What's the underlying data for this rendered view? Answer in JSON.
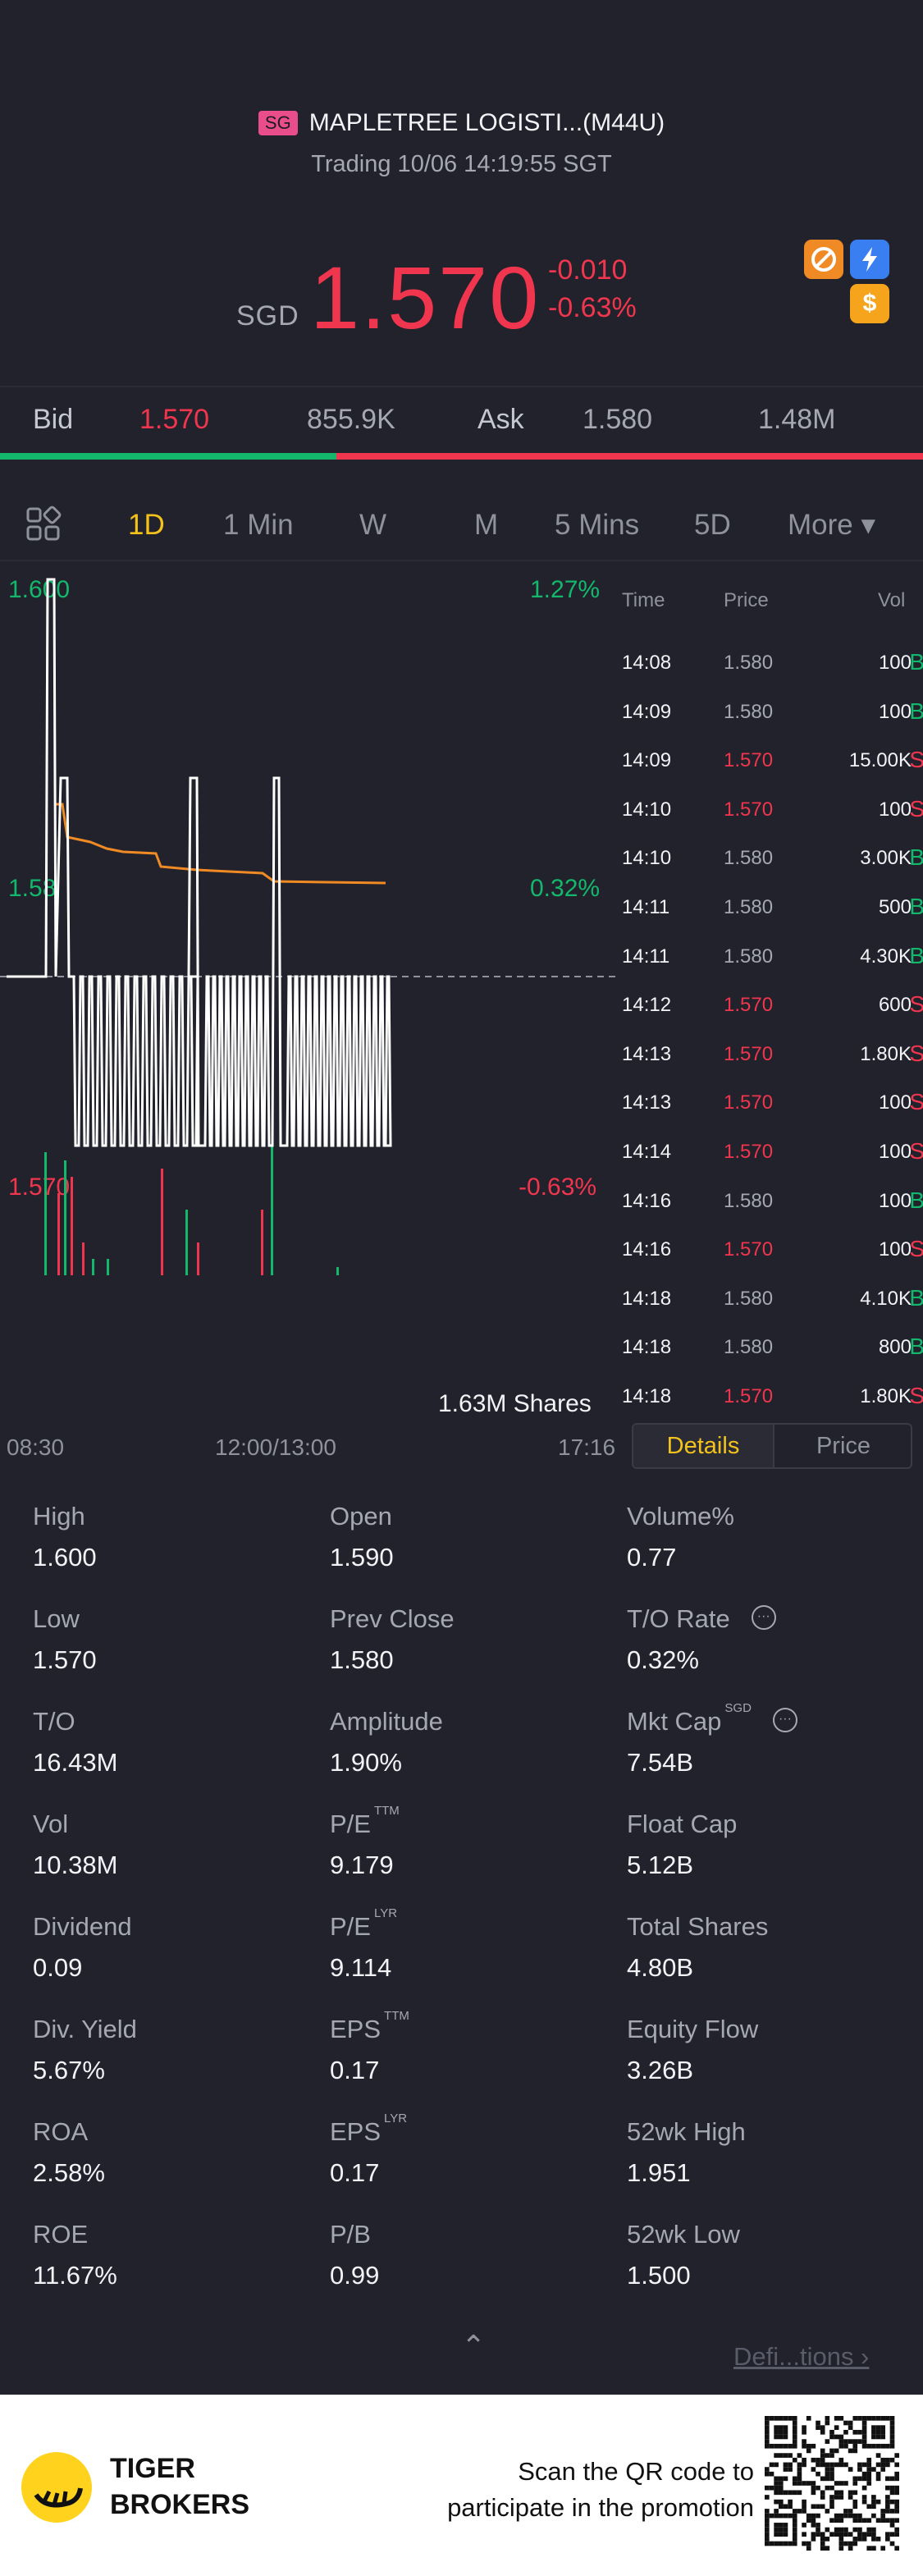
{
  "header": {
    "region": "SG",
    "title": "MAPLETREE LOGISTI...(M44U)",
    "status": "Trading 10/06 14:19:55 SGT"
  },
  "quote": {
    "currency": "SGD",
    "price": "1.570",
    "change": "-0.010",
    "change_pct": "-0.63%",
    "colors": {
      "down": "#f0364e",
      "up": "#14b86d",
      "accent": "#f5c21b"
    },
    "icons": [
      "no-short-icon",
      "flash-icon",
      "dollar-icon"
    ]
  },
  "bidask": {
    "bid_label": "Bid",
    "bid_price": "1.570",
    "bid_size": "855.9K",
    "ask_label": "Ask",
    "ask_price": "1.580",
    "ask_size": "1.48M"
  },
  "tabs": {
    "items": [
      "1D",
      "1 Min",
      "W",
      "M",
      "5 Mins",
      "5D"
    ],
    "active": "1D",
    "more": "More ▾"
  },
  "chart_data": {
    "type": "line",
    "price_axis": {
      "top": "1.600",
      "mid": "1.58",
      "bottom": "1.570"
    },
    "pct_axis": {
      "top": "1.27%",
      "mid": "0.32%",
      "bottom": "-0.63%"
    },
    "volume_label": "1.63M Shares",
    "x_ticks": [
      "08:30",
      "12:00/13:00",
      "17:16"
    ],
    "prev_close": 1.58,
    "ylim": [
      1.57,
      1.6
    ],
    "price_series": [
      1.58,
      1.58,
      1.6,
      1.58,
      1.59,
      1.59,
      1.57,
      1.58,
      1.57,
      1.57,
      1.59,
      1.57,
      1.57,
      1.59,
      1.57,
      1.58,
      1.57,
      1.57,
      1.58,
      1.57,
      1.57
    ],
    "avg_series": [
      1.59,
      1.59,
      1.588,
      1.587,
      1.587,
      1.586,
      1.585,
      1.585,
      1.585,
      1.584,
      1.584,
      1.583,
      1.583,
      1.583,
      1.583,
      1.583,
      1.583
    ]
  },
  "ticks": {
    "headers": [
      "Time",
      "Price",
      "Vol"
    ],
    "rows": [
      {
        "time": "14:08",
        "price": "1.580",
        "vol": "100",
        "side": "B"
      },
      {
        "time": "14:09",
        "price": "1.580",
        "vol": "100",
        "side": "B"
      },
      {
        "time": "14:09",
        "price": "1.570",
        "vol": "15.00K",
        "side": "S"
      },
      {
        "time": "14:10",
        "price": "1.570",
        "vol": "100",
        "side": "S"
      },
      {
        "time": "14:10",
        "price": "1.580",
        "vol": "3.00K",
        "side": "B"
      },
      {
        "time": "14:11",
        "price": "1.580",
        "vol": "500",
        "side": "B"
      },
      {
        "time": "14:11",
        "price": "1.580",
        "vol": "4.30K",
        "side": "B"
      },
      {
        "time": "14:12",
        "price": "1.570",
        "vol": "600",
        "side": "S"
      },
      {
        "time": "14:13",
        "price": "1.570",
        "vol": "1.80K",
        "side": "S"
      },
      {
        "time": "14:13",
        "price": "1.570",
        "vol": "100",
        "side": "S"
      },
      {
        "time": "14:14",
        "price": "1.570",
        "vol": "100",
        "side": "S"
      },
      {
        "time": "14:16",
        "price": "1.580",
        "vol": "100",
        "side": "B"
      },
      {
        "time": "14:16",
        "price": "1.570",
        "vol": "100",
        "side": "S"
      },
      {
        "time": "14:18",
        "price": "1.580",
        "vol": "4.10K",
        "side": "B"
      },
      {
        "time": "14:18",
        "price": "1.580",
        "vol": "800",
        "side": "B"
      },
      {
        "time": "14:18",
        "price": "1.570",
        "vol": "1.80K",
        "side": "S"
      }
    ]
  },
  "toggle": {
    "details": "Details",
    "price": "Price"
  },
  "stats": [
    {
      "k": "High",
      "v": "1.600"
    },
    {
      "k": "Open",
      "v": "1.590"
    },
    {
      "k": "Volume%",
      "v": "0.77"
    },
    {
      "k": "Low",
      "v": "1.570"
    },
    {
      "k": "Prev Close",
      "v": "1.580"
    },
    {
      "k": "T/O Rate",
      "v": "0.32%",
      "info": true
    },
    {
      "k": "T/O",
      "v": "16.43M"
    },
    {
      "k": "Amplitude",
      "v": "1.90%"
    },
    {
      "k": "Mkt Cap",
      "sup": "SGD",
      "v": "7.54B",
      "info": true
    },
    {
      "k": "Vol",
      "v": "10.38M"
    },
    {
      "k": "P/E",
      "sup": "TTM",
      "v": "9.179"
    },
    {
      "k": "Float Cap",
      "v": "5.12B"
    },
    {
      "k": "Dividend",
      "v": "0.09"
    },
    {
      "k": "P/E",
      "sup": "LYR",
      "v": "9.114"
    },
    {
      "k": "Total Shares",
      "v": "4.80B"
    },
    {
      "k": "Div. Yield",
      "v": "5.67%"
    },
    {
      "k": "EPS",
      "sup": "TTM",
      "v": "0.17"
    },
    {
      "k": "Equity Flow",
      "v": "3.26B"
    },
    {
      "k": "ROA",
      "v": "2.58%"
    },
    {
      "k": "EPS",
      "sup": "LYR",
      "v": "0.17"
    },
    {
      "k": "52wk High",
      "v": "1.951"
    },
    {
      "k": "ROE",
      "v": "11.67%"
    },
    {
      "k": "P/B",
      "v": "0.99"
    },
    {
      "k": "52wk Low",
      "v": "1.500"
    }
  ],
  "footer": {
    "collapse": "⌃",
    "definitions": "Defi...tions ›",
    "brand_line1": "TIGER",
    "brand_line2": "BROKERS",
    "promo_line1": "Scan the QR code to",
    "promo_line2": "participate in the promotion"
  }
}
